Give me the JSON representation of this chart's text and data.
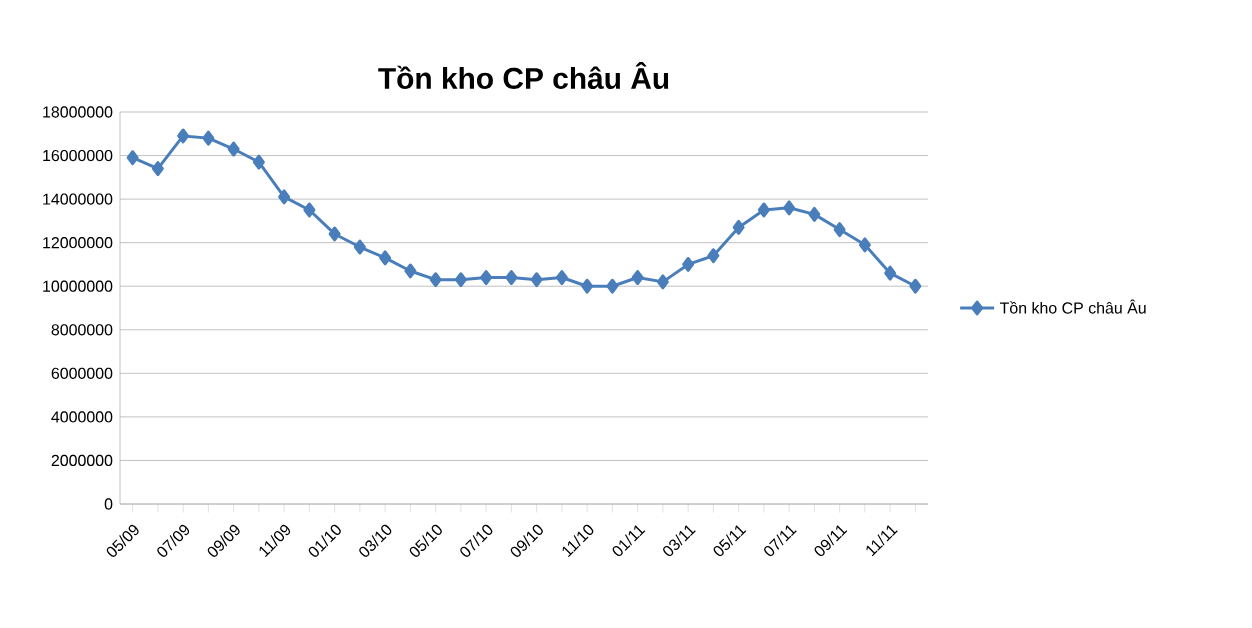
{
  "chart_data": {
    "type": "line",
    "title": "Tồn kho CP châu Âu",
    "categories": [
      "05/09",
      null,
      "07/09",
      null,
      "09/09",
      null,
      "11/09",
      null,
      "01/10",
      null,
      "03/10",
      null,
      "05/10",
      null,
      "07/10",
      null,
      "09/10",
      null,
      "11/10",
      null,
      "01/11",
      null,
      "03/11",
      null,
      "05/11",
      null,
      "07/11",
      null,
      "09/11",
      null,
      "11/11",
      null
    ],
    "series": [
      {
        "name": "Tồn kho CP châu Âu",
        "color": "#4a7ebb",
        "values": [
          15900000,
          15400000,
          16900000,
          16800000,
          16300000,
          15700000,
          14100000,
          13500000,
          12400000,
          11800000,
          11300000,
          10700000,
          10300000,
          10300000,
          10400000,
          10400000,
          10300000,
          10400000,
          10000000,
          10000000,
          10400000,
          10200000,
          11000000,
          11400000,
          12700000,
          13500000,
          13600000,
          13300000,
          12600000,
          11900000,
          10600000,
          10000000
        ]
      }
    ],
    "ylim": [
      0,
      18000000
    ],
    "yticks": [
      0,
      2000000,
      4000000,
      6000000,
      8000000,
      10000000,
      12000000,
      14000000,
      16000000,
      18000000
    ],
    "grid": "y",
    "legend": "right",
    "marker": "diamond",
    "line_style": "solid"
  }
}
